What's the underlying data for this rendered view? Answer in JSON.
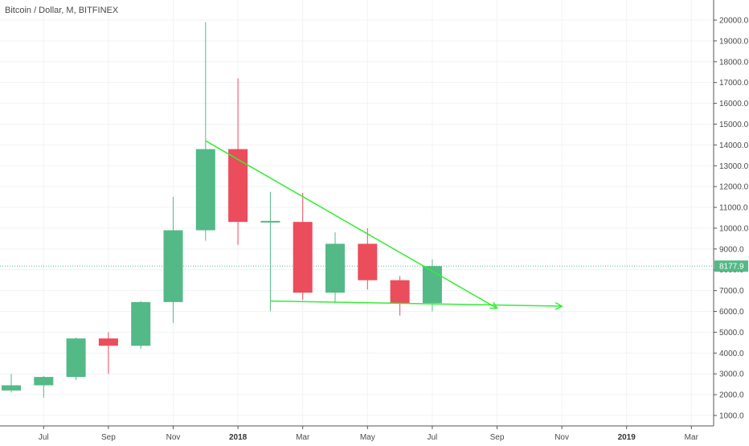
{
  "chart_data": {
    "type": "candlestick",
    "title": "Bitcoin / Dollar, M, BITFINEX",
    "ylim": [
      500,
      20700
    ],
    "grid": true,
    "y_ticks": [
      1000,
      2000,
      3000,
      4000,
      5000,
      6000,
      7000,
      8000,
      9000,
      10000,
      11000,
      12000,
      13000,
      14000,
      15000,
      16000,
      17000,
      18000,
      19000,
      20000
    ],
    "y_tick_labels": [
      "1000.0",
      "2000.0",
      "3000.0",
      "4000.0",
      "5000.0",
      "6000.0",
      "7000.0",
      "8000.0",
      "9000.0",
      "10000.0",
      "11000.0",
      "12000.0",
      "13000.0",
      "14000.0",
      "15000.0",
      "16000.0",
      "17000.0",
      "18000.0",
      "19000.0",
      "20000.0"
    ],
    "x_tick_labels": [
      {
        "label": "Jul",
        "month": "2017-07",
        "bold": false
      },
      {
        "label": "Sep",
        "month": "2017-09",
        "bold": false
      },
      {
        "label": "Nov",
        "month": "2017-11",
        "bold": false
      },
      {
        "label": "2018",
        "month": "2018-01",
        "bold": true
      },
      {
        "label": "Mar",
        "month": "2018-03",
        "bold": false
      },
      {
        "label": "May",
        "month": "2018-05",
        "bold": false
      },
      {
        "label": "Jul",
        "month": "2018-07",
        "bold": false
      },
      {
        "label": "Sep",
        "month": "2018-09",
        "bold": false
      },
      {
        "label": "Nov",
        "month": "2018-11",
        "bold": false
      },
      {
        "label": "2019",
        "month": "2019-01",
        "bold": true
      },
      {
        "label": "Mar",
        "month": "2019-03",
        "bold": false
      }
    ],
    "candles": [
      {
        "month": "2017-06",
        "open": 2200,
        "high": 3000,
        "low": 2100,
        "close": 2450
      },
      {
        "month": "2017-07",
        "open": 2450,
        "high": 2900,
        "low": 1850,
        "close": 2850
      },
      {
        "month": "2017-08",
        "open": 2850,
        "high": 4750,
        "low": 2700,
        "close": 4700
      },
      {
        "month": "2017-09",
        "open": 4700,
        "high": 5000,
        "low": 3000,
        "close": 4350
      },
      {
        "month": "2017-10",
        "open": 4350,
        "high": 6500,
        "low": 4200,
        "close": 6450
      },
      {
        "month": "2017-11",
        "open": 6450,
        "high": 11500,
        "low": 5450,
        "close": 9900
      },
      {
        "month": "2017-12",
        "open": 9900,
        "high": 19900,
        "low": 9400,
        "close": 13800
      },
      {
        "month": "2018-01",
        "open": 13800,
        "high": 17200,
        "low": 9200,
        "close": 10300
      },
      {
        "month": "2018-02",
        "open": 10300,
        "high": 11750,
        "low": 6000,
        "close": 10350
      },
      {
        "month": "2018-03",
        "open": 10300,
        "high": 11700,
        "low": 6550,
        "close": 6900
      },
      {
        "month": "2018-04",
        "open": 6900,
        "high": 9800,
        "low": 6450,
        "close": 9250
      },
      {
        "month": "2018-05",
        "open": 9250,
        "high": 10000,
        "low": 7050,
        "close": 7500
      },
      {
        "month": "2018-06",
        "open": 7500,
        "high": 7700,
        "low": 5800,
        "close": 6400
      },
      {
        "month": "2018-07",
        "open": 6400,
        "high": 8500,
        "low": 6000,
        "close": 8177.9
      }
    ],
    "last_price": 8177.9,
    "last_price_label": "8177.9",
    "trend_lines": [
      {
        "from": {
          "month": "2017-12",
          "value": 14200
        },
        "to": {
          "month": "2018-09",
          "value": 6150
        }
      },
      {
        "from": {
          "month": "2018-02",
          "value": 6500
        },
        "to": {
          "month": "2018-11",
          "value": 6250
        }
      }
    ],
    "colors": {
      "up": "#53b987",
      "down": "#eb4d5c",
      "trend": "#33ee33",
      "grid": "#f0f3f5",
      "price_line": "#53b987"
    }
  }
}
